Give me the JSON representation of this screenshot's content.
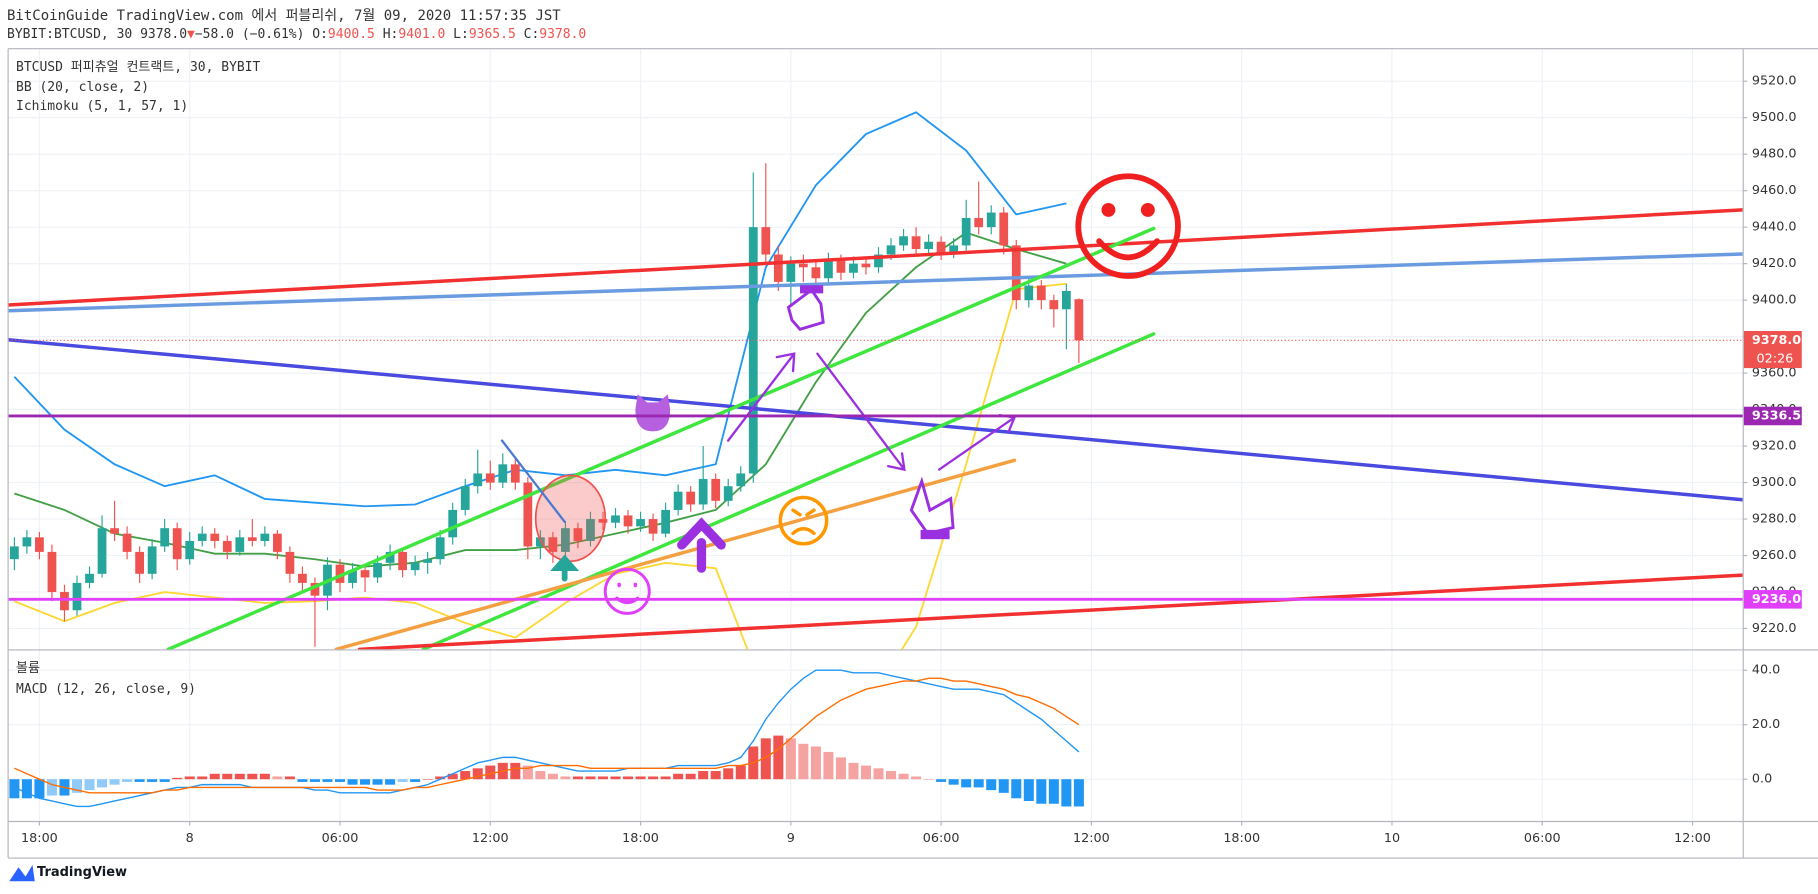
{
  "header": {
    "published": "BitCoinGuide TradingView.com 에서 퍼블리쉬, 7월 09, 2020 11:57:35 JST",
    "symbol": "BYBIT:BTCUSD, 30",
    "last": "9378.0",
    "arrow": "▼",
    "change": "−58.0 (−0.61%)",
    "o_label": "O:",
    "o": "9400.5",
    "h_label": "H:",
    "h": "9401.0",
    "l_label": "L:",
    "l": "9365.5",
    "c_label": "C:",
    "c": "9378.0",
    "brand": "TradingView"
  },
  "chart_data": [
    {
      "type": "candlestick",
      "title": "BTCUSD 퍼피츄얼 컨트랙트, 30, BYBIT",
      "indicators": [
        "BB (20, close, 2)",
        "Ichimoku (5, 1, 57, 1)"
      ],
      "up_color": "#26a69a",
      "down_color": "#ef5350",
      "xlim": [
        -1.25,
        68
      ],
      "ylim": [
        9208.6,
        9537.8
      ],
      "xticks": [
        {
          "value": 0,
          "label": "18:00"
        },
        {
          "value": 6,
          "label": "8"
        },
        {
          "value": 12,
          "label": "06:00"
        },
        {
          "value": 18,
          "label": "12:00"
        },
        {
          "value": 24,
          "label": "18:00"
        },
        {
          "value": 30,
          "label": "9"
        },
        {
          "value": 36,
          "label": "06:00"
        },
        {
          "value": 42,
          "label": "12:00"
        },
        {
          "value": 48,
          "label": "18:00"
        },
        {
          "value": 54,
          "label": "10"
        },
        {
          "value": 60,
          "label": "06:00"
        },
        {
          "value": 66,
          "label": "12:00"
        }
      ],
      "yticks": [
        {
          "value": 9220,
          "label": "9220.0"
        },
        {
          "value": 9240,
          "label": "9240.0"
        },
        {
          "value": 9260,
          "label": "9260.0"
        },
        {
          "value": 9280,
          "label": "9280.0"
        },
        {
          "value": 9300,
          "label": "9300.0"
        },
        {
          "value": 9320,
          "label": "9320.0"
        },
        {
          "value": 9340,
          "label": "9340.0"
        },
        {
          "value": 9360,
          "label": "9360.0"
        },
        {
          "value": 9380,
          "label": "9380.0"
        },
        {
          "value": 9400,
          "label": "9400.0"
        },
        {
          "value": 9420,
          "label": "9420.0"
        },
        {
          "value": 9440,
          "label": "9440.0"
        },
        {
          "value": 9460,
          "label": "9460.0"
        },
        {
          "value": 9480,
          "label": "9480.0"
        },
        {
          "value": 9500,
          "label": "9500.0"
        },
        {
          "value": 9520,
          "label": "9520.0"
        }
      ],
      "grid": true,
      "x": [
        -1,
        -0.5,
        0,
        0.5,
        1,
        1.5,
        2,
        2.5,
        3,
        3.5,
        4,
        4.5,
        5,
        5.5,
        6,
        6.5,
        7,
        7.5,
        8,
        8.5,
        9,
        9.5,
        10,
        10.5,
        11,
        11.5,
        12,
        12.5,
        13,
        13.5,
        14,
        14.5,
        15,
        15.5,
        16,
        16.5,
        17,
        17.5,
        18,
        18.5,
        19,
        19.5,
        20,
        20.5,
        21,
        21.5,
        22,
        22.5,
        23,
        23.5,
        24,
        24.5,
        25,
        25.5,
        26,
        26.5,
        27,
        27.5,
        28,
        28.5,
        29,
        29.5,
        30,
        30.5,
        31,
        31.5,
        32,
        32.5,
        33,
        33.5,
        34,
        34.5,
        35,
        35.5,
        36,
        36.5,
        37,
        37.5,
        38,
        38.5,
        39,
        39.5,
        40,
        40.5,
        41,
        41.5
      ],
      "ohlc": [
        [
          9258,
          9270,
          9252,
          9265
        ],
        [
          9265,
          9274,
          9261,
          9270
        ],
        [
          9270,
          9273,
          9258,
          9262
        ],
        [
          9262,
          9266,
          9235,
          9240
        ],
        [
          9240,
          9244,
          9224,
          9230
        ],
        [
          9230,
          9249,
          9227,
          9245
        ],
        [
          9245,
          9254,
          9242,
          9250
        ],
        [
          9250,
          9282,
          9248,
          9275
        ],
        [
          9275,
          9290,
          9268,
          9272
        ],
        [
          9272,
          9276,
          9258,
          9262
        ],
        [
          9262,
          9265,
          9245,
          9250
        ],
        [
          9250,
          9269,
          9247,
          9265
        ],
        [
          9265,
          9280,
          9262,
          9275
        ],
        [
          9275,
          9278,
          9252,
          9258
        ],
        [
          9258,
          9273,
          9255,
          9268
        ],
        [
          9268,
          9276,
          9265,
          9272
        ],
        [
          9272,
          9275,
          9264,
          9268
        ],
        [
          9268,
          9271,
          9258,
          9262
        ],
        [
          9262,
          9274,
          9260,
          9270
        ],
        [
          9270,
          9280,
          9265,
          9268
        ],
        [
          9268,
          9276,
          9265,
          9272
        ],
        [
          9272,
          9274,
          9258,
          9262
        ],
        [
          9262,
          9265,
          9245,
          9250
        ],
        [
          9250,
          9254,
          9240,
          9245
        ],
        [
          9245,
          9248,
          9210,
          9238
        ],
        [
          9238,
          9259,
          9230,
          9255
        ],
        [
          9255,
          9258,
          9240,
          9245
        ],
        [
          9245,
          9256,
          9242,
          9252
        ],
        [
          9252,
          9255,
          9240,
          9248
        ],
        [
          9248,
          9260,
          9245,
          9256
        ],
        [
          9256,
          9266,
          9252,
          9262
        ],
        [
          9262,
          9264,
          9248,
          9252
        ],
        [
          9252,
          9260,
          9249,
          9256
        ],
        [
          9256,
          9262,
          9250,
          9258
        ],
        [
          9258,
          9274,
          9255,
          9270
        ],
        [
          9270,
          9289,
          9266,
          9285
        ],
        [
          9285,
          9302,
          9282,
          9298
        ],
        [
          9298,
          9318,
          9294,
          9305
        ],
        [
          9305,
          9312,
          9296,
          9300
        ],
        [
          9300,
          9316,
          9297,
          9310
        ],
        [
          9310,
          9313,
          9296,
          9300
        ],
        [
          9300,
          9303,
          9258,
          9265
        ],
        [
          9265,
          9274,
          9258,
          9270
        ],
        [
          9270,
          9273,
          9256,
          9262
        ],
        [
          9262,
          9279,
          9258,
          9275
        ],
        [
          9275,
          9278,
          9264,
          9268
        ],
        [
          9268,
          9284,
          9265,
          9280
        ],
        [
          9280,
          9284,
          9274,
          9278
        ],
        [
          9278,
          9286,
          9275,
          9282
        ],
        [
          9282,
          9285,
          9272,
          9276
        ],
        [
          9276,
          9284,
          9273,
          9280
        ],
        [
          9280,
          9283,
          9268,
          9272
        ],
        [
          9272,
          9289,
          9270,
          9285
        ],
        [
          9285,
          9299,
          9282,
          9295
        ],
        [
          9295,
          9298,
          9284,
          9288
        ],
        [
          9288,
          9320,
          9285,
          9302
        ],
        [
          9302,
          9305,
          9286,
          9290
        ],
        [
          9290,
          9302,
          9287,
          9298
        ],
        [
          9298,
          9309,
          9295,
          9305
        ],
        [
          9305,
          9470,
          9300,
          9440
        ],
        [
          9440,
          9475,
          9420,
          9425
        ],
        [
          9425,
          9430,
          9405,
          9410
        ],
        [
          9410,
          9424,
          9395,
          9420
        ],
        [
          9420,
          9425,
          9410,
          9418
        ],
        [
          9418,
          9421,
          9408,
          9412
        ],
        [
          9412,
          9426,
          9409,
          9422
        ],
        [
          9422,
          9425,
          9411,
          9415
        ],
        [
          9415,
          9424,
          9412,
          9420
        ],
        [
          9420,
          9423,
          9414,
          9418
        ],
        [
          9418,
          9429,
          9415,
          9425
        ],
        [
          9425,
          9434,
          9422,
          9430
        ],
        [
          9430,
          9439,
          9427,
          9435
        ],
        [
          9435,
          9440,
          9424,
          9428
        ],
        [
          9428,
          9436,
          9425,
          9432
        ],
        [
          9432,
          9435,
          9422,
          9426
        ],
        [
          9426,
          9434,
          9423,
          9430
        ],
        [
          9430,
          9455,
          9427,
          9445
        ],
        [
          9445,
          9465,
          9436,
          9440
        ],
        [
          9440,
          9452,
          9436,
          9448
        ],
        [
          9448,
          9451,
          9425,
          9430
        ],
        [
          9430,
          9433,
          9395,
          9400
        ],
        [
          9400,
          9412,
          9396,
          9408
        ],
        [
          9408,
          9411,
          9395,
          9400
        ],
        [
          9400,
          9403,
          9385,
          9395
        ],
        [
          9395,
          9409,
          9373,
          9405
        ],
        [
          9400.5,
          9401,
          9365.5,
          9378
        ]
      ],
      "bb_x": [
        -1,
        1,
        3,
        5,
        7,
        9,
        11,
        13,
        15,
        17,
        19,
        21,
        23,
        25,
        27,
        29,
        31,
        33,
        35,
        37,
        39,
        41
      ],
      "bb_upper": {
        "color": "#2196f3",
        "values": [
          9358,
          9329,
          9310,
          9298,
          9304,
          9291,
          9289,
          9287,
          9288,
          9298,
          9307,
          9304,
          9307,
          9304,
          9310,
          9418,
          9463,
          9491,
          9503,
          9482,
          9447,
          9453
        ]
      },
      "bb_basis": {
        "color": "#43a047",
        "values": [
          9294,
          9285,
          9272,
          9267,
          9261,
          9261,
          9258,
          9254,
          9256,
          9263,
          9263,
          9266,
          9272,
          9278,
          9285,
          9310,
          9355,
          9393,
          9418,
          9437,
          9428,
          9420
        ]
      },
      "bb_lower": {
        "color": "#fdd835",
        "values": [
          9235,
          9224,
          9234,
          9240,
          9237,
          9234,
          9235,
          9237,
          9234,
          9223,
          9215,
          9234,
          9250,
          9256,
          9253,
          9183,
          9170,
          9177,
          9221,
          9310,
          9406,
          9409
        ]
      },
      "last_price": {
        "value": 9378,
        "label": "9378.0",
        "countdown": "02:26",
        "color": "#ef5350"
      },
      "hlines": [
        {
          "value": 9336.5,
          "color": "#9c27b0"
        },
        {
          "value": 9236,
          "label": "9236.0",
          "color": "#e040fb"
        }
      ]
    },
    {
      "type": "macd",
      "titles": [
        "볼륨",
        "MACD (12, 26, close, 9)"
      ],
      "xlim": [
        -1.25,
        68
      ],
      "ylim": [
        -15.3,
        46.8
      ],
      "yticks": [
        {
          "value": 0,
          "label": "0.0"
        },
        {
          "value": 20,
          "label": "20.0"
        },
        {
          "value": 40,
          "label": "40.0"
        }
      ],
      "xticks": [
        0,
        6,
        12,
        18,
        24,
        30,
        36,
        42,
        48,
        54,
        60,
        66
      ],
      "x": [
        -1,
        -0.5,
        0,
        0.5,
        1,
        1.5,
        2,
        2.5,
        3,
        3.5,
        4,
        4.5,
        5,
        5.5,
        6,
        6.5,
        7,
        7.5,
        8,
        8.5,
        9,
        9.5,
        10,
        10.5,
        11,
        11.5,
        12,
        12.5,
        13,
        13.5,
        14,
        14.5,
        15,
        15.5,
        16,
        16.5,
        17,
        17.5,
        18,
        18.5,
        19,
        19.5,
        20,
        20.5,
        21,
        21.5,
        22,
        22.5,
        23,
        23.5,
        24,
        24.5,
        25,
        25.5,
        26,
        26.5,
        27,
        27.5,
        28,
        28.5,
        29,
        29.5,
        30,
        30.5,
        31,
        31.5,
        32,
        32.5,
        33,
        33.5,
        34,
        34.5,
        35,
        35.5,
        36,
        36.5,
        37,
        37.5,
        38,
        38.5,
        39,
        39.5,
        40,
        40.5,
        41,
        41.5
      ],
      "histogram": [
        -7,
        -7,
        -7,
        -6,
        -6,
        -5,
        -4,
        -3,
        -2,
        -1,
        -1,
        -1,
        -1,
        0.5,
        1,
        1,
        2,
        2,
        2,
        2,
        2,
        1,
        1,
        -1,
        -1,
        -1,
        -1,
        -2,
        -2,
        -2,
        -2,
        -1,
        -1,
        0,
        1,
        2,
        3,
        4,
        5,
        6,
        6,
        5,
        3,
        2,
        1,
        1,
        1,
        1,
        1,
        1,
        1,
        1,
        1,
        2,
        2,
        3,
        3,
        4,
        5,
        12,
        15,
        16,
        15,
        13,
        12,
        10,
        8,
        6,
        5,
        4,
        3,
        2,
        1,
        0,
        -1,
        -2,
        -3,
        -3,
        -4,
        -5,
        -7,
        -8,
        -9,
        -9,
        -10,
        -10
      ],
      "hist_colors": [
        "#ef5350",
        "#f5a3a1",
        "#2196f3",
        "#90caf9"
      ],
      "macd": {
        "color": "#2196f3",
        "values": [
          -3,
          -5,
          -7,
          -8,
          -9,
          -10,
          -10,
          -9,
          -8,
          -7,
          -6,
          -5,
          -4,
          -3,
          -3,
          -2,
          -2,
          -2,
          -2,
          -3,
          -3,
          -3,
          -3,
          -3,
          -4,
          -4,
          -5,
          -5,
          -5,
          -5,
          -5,
          -4,
          -3,
          -2,
          0,
          2,
          4,
          6,
          7,
          8,
          8,
          7,
          6,
          5,
          4,
          3,
          3,
          3,
          3,
          4,
          4,
          4,
          4,
          5,
          5,
          5,
          5,
          6,
          8,
          14,
          22,
          28,
          33,
          37,
          40,
          40,
          40,
          39,
          39,
          39,
          38,
          37,
          36,
          35,
          34,
          33,
          33,
          33,
          32,
          31,
          28,
          25,
          22,
          18,
          14,
          10
        ]
      },
      "signal": {
        "color": "#ff6d00",
        "values": [
          4,
          2,
          0,
          -2,
          -3,
          -4,
          -5,
          -5,
          -5,
          -5,
          -5,
          -5,
          -4,
          -4,
          -3,
          -3,
          -3,
          -3,
          -3,
          -3,
          -3,
          -3,
          -3,
          -3,
          -3,
          -3,
          -3,
          -3,
          -3,
          -4,
          -4,
          -4,
          -3,
          -3,
          -2,
          -1,
          0,
          1,
          2,
          3,
          4,
          4,
          5,
          5,
          5,
          5,
          4,
          4,
          4,
          4,
          4,
          4,
          4,
          4,
          4,
          4,
          4,
          5,
          5,
          6,
          8,
          11,
          15,
          19,
          23,
          26,
          29,
          31,
          33,
          34,
          35,
          36,
          36,
          37,
          37,
          36,
          36,
          35,
          34,
          33,
          31,
          30,
          28,
          26,
          23,
          20
        ]
      }
    }
  ]
}
